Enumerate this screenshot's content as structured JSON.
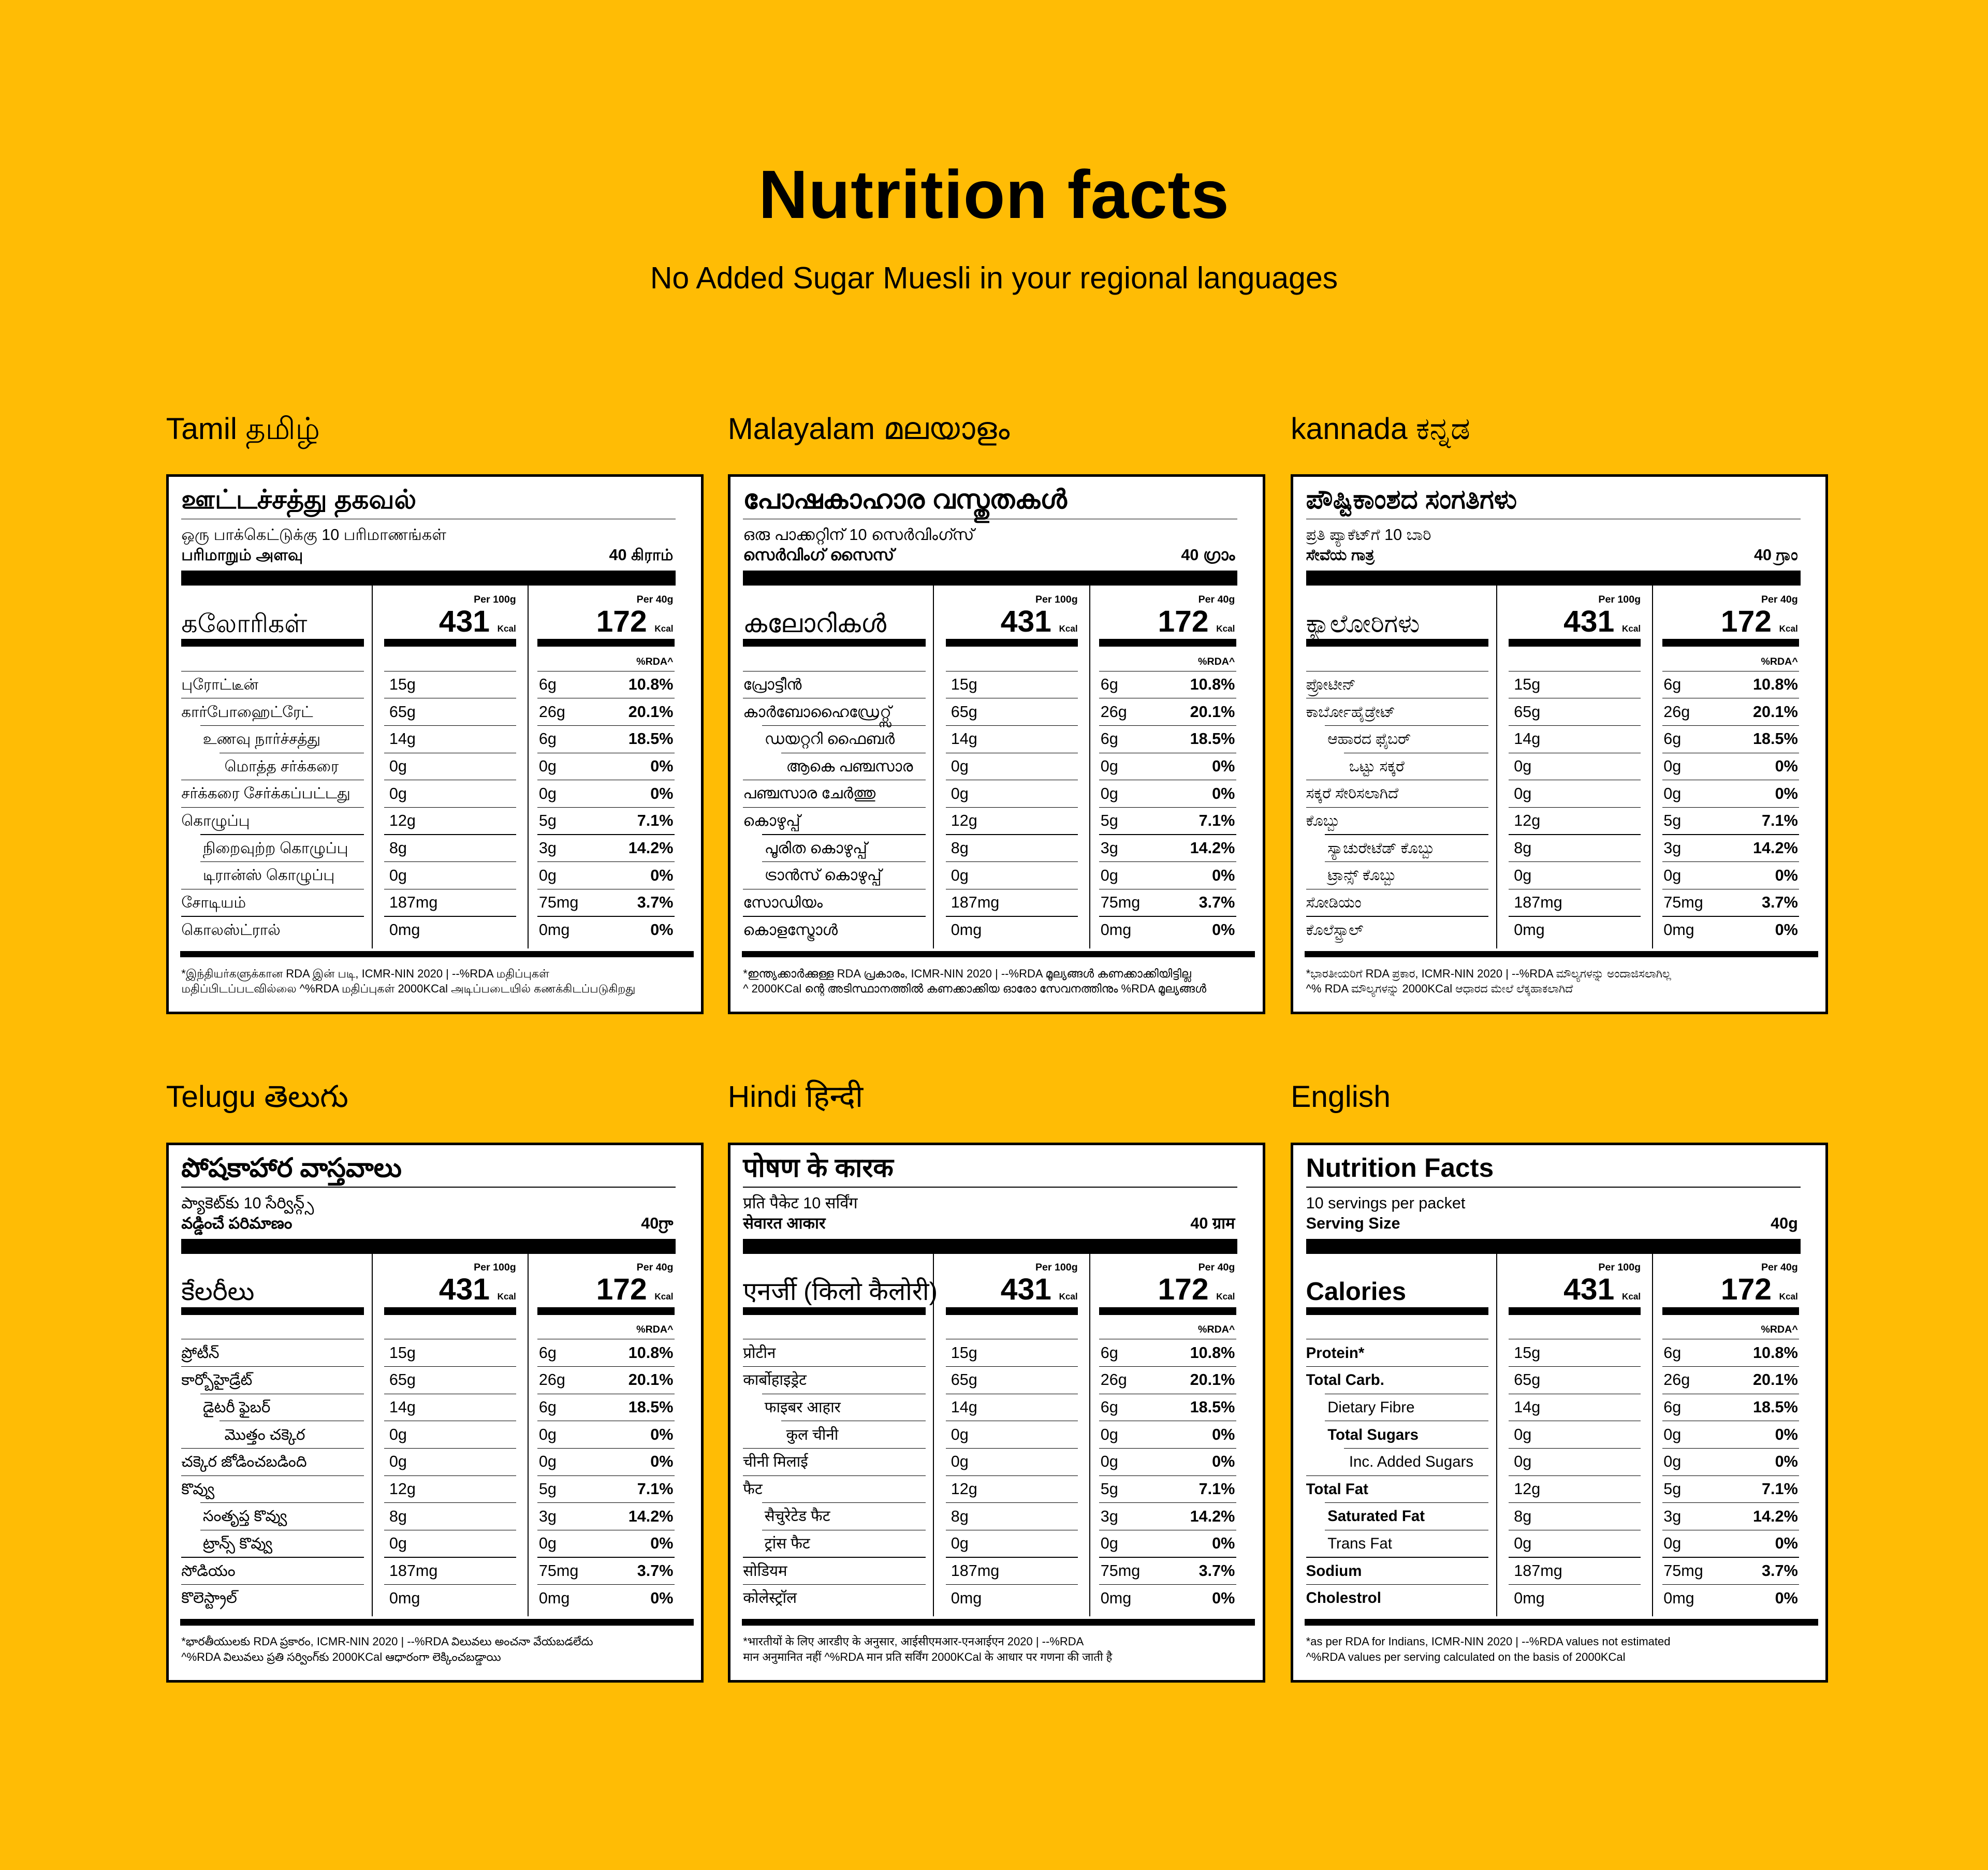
{
  "header": {
    "title": "Nutrition facts",
    "subtitle": "No Added Sugar Muesli in your regional languages"
  },
  "panels": [
    {
      "language": "Tamil தமிழ்",
      "title": "ஊட்டச்சத்து தகவல்",
      "servings": "ஒரு பாக்கெட்டுக்கு 10 பரிமாணங்கள்",
      "serving_size_label": "பரிமாறும் அளவு",
      "serving_size": "40 கிராம்",
      "per_100g_label": "Per 100g",
      "per_40g_label": "Per 40g",
      "calories_label": "கலோரிகள்",
      "calories_per_100g": 431,
      "calories_per_40g": 172,
      "calories_unit": "Kcal",
      "rda_label": "%RDA^",
      "rows": [
        [
          "புரோட்டீன்",
          "15g",
          "6g",
          "10.8%"
        ],
        [
          "கார்போஹைட்ரேட்",
          "65g",
          "26g",
          "20.1%"
        ],
        [
          "உணவு நார்ச்சத்து",
          "14g",
          "6g",
          "18.5%"
        ],
        [
          "மொத்த சர்க்கரை",
          "0g",
          "0g",
          "0%"
        ],
        [
          "சர்க்கரை சேர்க்கப்பட்டது",
          "0g",
          "0g",
          "0%"
        ],
        [
          "கொழுப்பு",
          "12g",
          "5g",
          "7.1%"
        ],
        [
          "நிறைவுற்ற கொழுப்பு",
          "8g",
          "3g",
          "14.2%"
        ],
        [
          "டிரான்ஸ் கொழுப்பு",
          "0g",
          "0g",
          "0%"
        ],
        [
          "சோடியம்",
          "187mg",
          "75mg",
          "3.7%"
        ],
        [
          "கொலஸ்ட்ரால்",
          "0mg",
          "0mg",
          "0%"
        ]
      ],
      "footnote": [
        "*இந்தியர்களுக்கான RDA இன் படி, ICMR-NIN 2020 | --%RDA மதிப்புகள்",
        "மதிப்பிடப்படவில்லை ^%RDA மதிப்புகள் 2000KCal அடிப்படையில் கணக்கிடப்படுகிறது"
      ]
    },
    {
      "language": "Malayalam മലയാളം",
      "title": "പോഷകാഹാര വസ്തുതകൾ",
      "servings": "ഒരു പാക്കറ്റിന് 10 സെർവിംഗ്സ്",
      "serving_size_label": "സെർവിംഗ് സൈസ്",
      "serving_size": "40 ഗ്രാം",
      "per_100g_label": "Per 100g",
      "per_40g_label": "Per 40g",
      "calories_label": "കലോറികൾ",
      "calories_per_100g": 431,
      "calories_per_40g": 172,
      "calories_unit": "Kcal",
      "rda_label": "%RDA^",
      "rows": [
        [
          "പ്രോട്ടീൻ",
          "15g",
          "6g",
          "10.8%"
        ],
        [
          "കാർബോഹൈഡ്രേറ്റ്സ്",
          "65g",
          "26g",
          "20.1%"
        ],
        [
          "ഡയറ്ററി ഫൈബർ",
          "14g",
          "6g",
          "18.5%"
        ],
        [
          "ആകെ പഞ്ചസാര",
          "0g",
          "0g",
          "0%"
        ],
        [
          "പഞ്ചസാര ചേർത്തു",
          "0g",
          "0g",
          "0%"
        ],
        [
          "കൊഴുപ്പ്",
          "12g",
          "5g",
          "7.1%"
        ],
        [
          "പൂരിത കൊഴുപ്പ്",
          "8g",
          "3g",
          "14.2%"
        ],
        [
          "ട്രാൻസ് കൊഴുപ്പ്",
          "0g",
          "0g",
          "0%"
        ],
        [
          "സോഡിയം",
          "187mg",
          "75mg",
          "3.7%"
        ],
        [
          "കൊളസ്ട്രോൾ",
          "0mg",
          "0mg",
          "0%"
        ]
      ],
      "footnote": [
        "*ഇന്ത്യക്കാർക്കുള്ള RDA പ്രകാരം, ICMR-NIN 2020 | --%RDA മൂല്യങ്ങൾ കണക്കാക്കിയിട്ടില്ല",
        "^ 2000KCal ന്റെ അടിസ്ഥാനത്തിൽ കണക്കാക്കിയ ഓരോ സേവനത്തിനും %RDA മൂല്യങ്ങൾ"
      ]
    },
    {
      "language": "kannada ಕನ್ನಡ",
      "title": "ಪೌಷ್ಟಿಕಾಂಶದ ಸಂಗತಿಗಳು",
      "servings": "ಪ್ರತಿ ಪ್ಯಾಕೆಟ್‌ಗೆ 10 ಬಾರಿ",
      "serving_size_label": "ಸೇವೆಯ ಗಾತ್ರ",
      "serving_size": "40 ಗ್ರಾಂ",
      "per_100g_label": "Per 100g",
      "per_40g_label": "Per 40g",
      "calories_label": "ಕ್ಯಾಲೋರಿಗಳು",
      "calories_per_100g": 431,
      "calories_per_40g": 172,
      "calories_unit": "Kcal",
      "rda_label": "%RDA^",
      "rows": [
        [
          "ಪ್ರೋಟೀನ್",
          "15g",
          "6g",
          "10.8%"
        ],
        [
          "ಕಾರ್ಬೋಹೈಡ್ರೇಟ್",
          "65g",
          "26g",
          "20.1%"
        ],
        [
          "ಆಹಾರದ ಫೈಬರ್",
          "14g",
          "6g",
          "18.5%"
        ],
        [
          "ಒಟ್ಟು ಸಕ್ಕರೆ",
          "0g",
          "0g",
          "0%"
        ],
        [
          "ಸಕ್ಕರೆ ಸೇರಿಸಲಾಗಿದೆ",
          "0g",
          "0g",
          "0%"
        ],
        [
          "ಕೊಬ್ಬು",
          "12g",
          "5g",
          "7.1%"
        ],
        [
          "ಸ್ಯಾಚುರೇಟೆಡ್ ಕೊಬ್ಬು",
          "8g",
          "3g",
          "14.2%"
        ],
        [
          "ಟ್ರಾನ್ಸ್ ಕೊಬ್ಬು",
          "0g",
          "0g",
          "0%"
        ],
        [
          "ಸೋಡಿಯಂ",
          "187mg",
          "75mg",
          "3.7%"
        ],
        [
          "ಕೊಲೆಸ್ಟ್ರಾಲ್",
          "0mg",
          "0mg",
          "0%"
        ]
      ],
      "footnote": [
        "*ಭಾರತೀಯರಿಗೆ RDA ಪ್ರಕಾರ, ICMR-NIN 2020 | --%RDA ಮೌಲ್ಯಗಳನ್ನು ಅಂದಾಜಿಸಲಾಗಿಲ್ಲ",
        "^% RDA ಮೌಲ್ಯಗಳನ್ನು 2000KCal ಆಧಾರದ ಮೇಲೆ ಲೆಕ್ಕಹಾಕಲಾಗಿದೆ"
      ]
    },
    {
      "language": "Telugu తెలుగు",
      "title": "పోషకాహార వాస్తవాలు",
      "servings": "ప్యాకెట్‌కు 10 సేర్విన్గ్స్",
      "serving_size_label": "వడ్డించే పరిమాణం",
      "serving_size": "40గ్రా",
      "per_100g_label": "Per 100g",
      "per_40g_label": "Per 40g",
      "calories_label": "కేలరీలు",
      "calories_per_100g": 431,
      "calories_per_40g": 172,
      "calories_unit": "Kcal",
      "rda_label": "%RDA^",
      "rows": [
        [
          "ప్రోటీన్",
          "15g",
          "6g",
          "10.8%"
        ],
        [
          "కార్బోహైడ్రేట్",
          "65g",
          "26g",
          "20.1%"
        ],
        [
          "డైటరీ ఫైబర్",
          "14g",
          "6g",
          "18.5%"
        ],
        [
          "మొత్తం చక్కెర",
          "0g",
          "0g",
          "0%"
        ],
        [
          "చక్కెర జోడించబడింది",
          "0g",
          "0g",
          "0%"
        ],
        [
          "కొవ్వు",
          "12g",
          "5g",
          "7.1%"
        ],
        [
          "సంతృప్త కొవ్వు",
          "8g",
          "3g",
          "14.2%"
        ],
        [
          "ట్రాన్స్ కొవ్వు",
          "0g",
          "0g",
          "0%"
        ],
        [
          "సోడియం",
          "187mg",
          "75mg",
          "3.7%"
        ],
        [
          "కొలెస్ట్రాల్",
          "0mg",
          "0mg",
          "0%"
        ]
      ],
      "footnote": [
        "*భారతీయులకు RDA ప్రకారం, ICMR-NIN 2020 | --%RDA విలువలు అంచనా వేయబడలేదు",
        "^%RDA విలువలు ప్రతి సర్వింగ్‌కు 2000KCal ఆధారంగా లెక్కించబడ్డాయి"
      ]
    },
    {
      "language": "Hindi हिन्दी",
      "title": "पोषण के कारक",
      "servings": "प्रति पैकेट 10 सर्विंग",
      "serving_size_label": "सेवारत आकार",
      "serving_size": "40 ग्राम",
      "per_100g_label": "Per 100g",
      "per_40g_label": "Per 40g",
      "calories_label": "एनर्जी (किलो कैलोरी)",
      "calories_per_100g": 431,
      "calories_per_40g": 172,
      "calories_unit": "Kcal",
      "rda_label": "%RDA^",
      "rows": [
        [
          "प्रोटीन",
          "15g",
          "6g",
          "10.8%"
        ],
        [
          "कार्बोहाइड्रेट",
          "65g",
          "26g",
          "20.1%"
        ],
        [
          "फाइबर आहार",
          "14g",
          "6g",
          "18.5%"
        ],
        [
          "कुल चीनी",
          "0g",
          "0g",
          "0%"
        ],
        [
          "चीनी मिलाई",
          "0g",
          "0g",
          "0%"
        ],
        [
          "फैट",
          "12g",
          "5g",
          "7.1%"
        ],
        [
          "सैचुरेटेड फैट",
          "8g",
          "3g",
          "14.2%"
        ],
        [
          "ट्रांस फैट",
          "0g",
          "0g",
          "0%"
        ],
        [
          "सोडियम",
          "187mg",
          "75mg",
          "3.7%"
        ],
        [
          "कोलेस्ट्रॉल",
          "0mg",
          "0mg",
          "0%"
        ]
      ],
      "footnote": [
        "*भारतीयों के लिए आरडीए के अनुसार, आईसीएमआर-एनआईएन 2020 | --%RDA",
        "मान अनुमानित नहीं ^%RDA मान प्रति सर्विंग 2000KCal के आधार पर गणना की जाती है"
      ]
    },
    {
      "language": "English",
      "title": "Nutrition Facts",
      "servings": "10 servings per packet",
      "serving_size_label": "Serving Size",
      "serving_size": "40g",
      "per_100g_label": "Per 100g",
      "per_40g_label": "Per 40g",
      "calories_label": "Calories",
      "calories_per_100g": 431,
      "calories_per_40g": 172,
      "calories_unit": "Kcal",
      "rda_label": "%RDA^",
      "rows": [
        [
          "Protein*",
          "15g",
          "6g",
          "10.8%"
        ],
        [
          "Total Carb.",
          "65g",
          "26g",
          "20.1%"
        ],
        [
          "Dietary Fibre",
          "14g",
          "6g",
          "18.5%"
        ],
        [
          "Total Sugars",
          "0g",
          "0g",
          "0%"
        ],
        [
          "Inc. Added Sugars",
          "0g",
          "0g",
          "0%"
        ],
        [
          "Total Fat",
          "12g",
          "5g",
          "7.1%"
        ],
        [
          "Saturated Fat",
          "8g",
          "3g",
          "14.2%"
        ],
        [
          "Trans Fat",
          "0g",
          "0g",
          "0%"
        ],
        [
          "Sodium",
          "187mg",
          "75mg",
          "3.7%"
        ],
        [
          "Cholestrol",
          "0mg",
          "0mg",
          "0%"
        ]
      ],
      "footnote": [
        "*as per RDA for Indians, ICMR-NIN 2020 | --%RDA values not estimated",
        "^%RDA values per serving calculated on the basis of 2000KCal"
      ]
    }
  ]
}
